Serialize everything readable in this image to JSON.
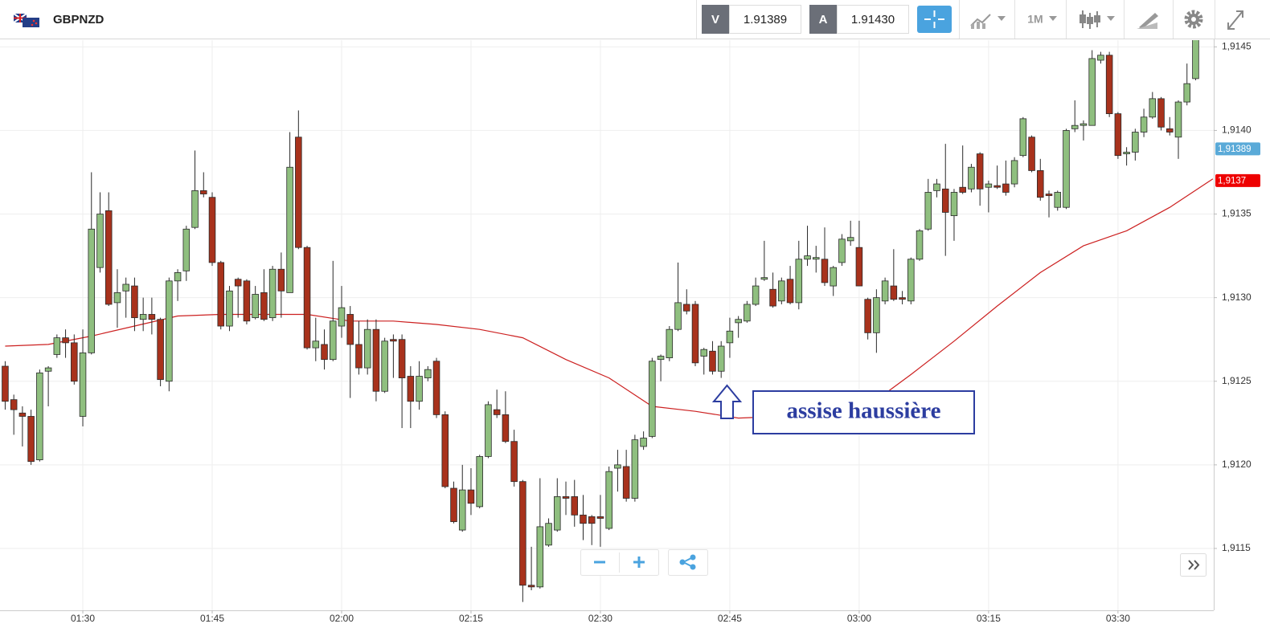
{
  "toolbar": {
    "symbol": "GBPNZD",
    "bid_label": "V",
    "bid": "1.91389",
    "ask_label": "A",
    "ask": "1.91430",
    "timeframe": "1M"
  },
  "chart_data": {
    "type": "candlestick",
    "x": [
      81,
      82,
      83,
      84,
      85,
      86,
      87,
      88,
      89,
      90,
      91,
      92,
      93,
      94,
      95,
      96,
      97,
      98,
      99,
      100,
      101,
      102,
      103,
      104,
      105,
      106,
      107,
      108,
      109,
      110,
      111,
      112,
      113,
      114,
      115,
      116,
      117,
      118,
      119,
      120,
      121,
      122,
      123,
      124,
      125,
      126,
      127,
      128,
      129,
      130,
      131,
      132,
      133,
      134,
      135,
      136,
      137,
      138,
      139,
      140,
      141,
      142,
      143,
      144,
      145,
      146,
      147,
      148,
      149,
      150,
      151,
      152,
      153,
      154,
      155,
      156,
      157,
      158,
      159,
      160,
      161,
      162,
      163,
      164,
      165,
      166,
      167,
      168,
      169,
      170,
      171,
      172,
      173,
      174,
      175,
      176,
      177,
      178,
      179,
      180,
      181,
      182,
      183,
      184,
      185,
      186,
      187,
      188,
      189,
      190,
      191,
      192,
      193,
      194,
      195,
      196,
      197,
      198,
      199,
      200,
      201,
      202,
      203,
      204,
      205,
      206,
      207,
      208,
      209,
      210,
      211,
      212,
      213,
      214,
      215,
      216,
      217,
      218,
      219
    ],
    "open": [
      1.91259,
      1.91239,
      1.91231,
      1.91229,
      1.91203,
      1.91256,
      1.91266,
      1.91276,
      1.91273,
      1.91229,
      1.91267,
      1.91318,
      1.91352,
      1.91297,
      1.91304,
      1.91307,
      1.91287,
      1.9129,
      1.91287,
      1.9125,
      1.9131,
      1.91316,
      1.91342,
      1.91364,
      1.9136,
      1.91321,
      1.91283,
      1.91311,
      1.9131,
      1.91288,
      1.91303,
      1.91288,
      1.91317,
      1.91303,
      1.91396,
      1.9133,
      1.9127,
      1.91272,
      1.91263,
      1.91283,
      1.9129,
      1.91272,
      1.91258,
      1.91281,
      1.91244,
      1.91275,
      1.91275,
      1.91253,
      1.91238,
      1.91252,
      1.91262,
      1.9123,
      1.91186,
      1.91161,
      1.91185,
      1.91175,
      1.91205,
      1.91233,
      1.9123,
      1.91214,
      1.9119,
      1.91128,
      1.91127,
      1.91152,
      1.91161,
      1.91181,
      1.91181,
      1.9117,
      1.91169,
      1.91169,
      1.91162,
      1.91198,
      1.91199,
      1.9118,
      1.91211,
      1.91217,
      1.91263,
      1.91264,
      1.91281,
      1.91296,
      1.91296,
      1.91265,
      1.91268,
      1.91256,
      1.91273,
      1.91285,
      1.91286,
      1.91296,
      1.91311,
      1.91305,
      1.91298,
      1.91311,
      1.91297,
      1.91323,
      1.91323,
      1.91323,
      1.91307,
      1.91321,
      1.91334,
      1.9133,
      1.91299,
      1.91279,
      1.91298,
      1.91307,
      1.913,
      1.91298,
      1.91323,
      1.91341,
      1.91364,
      1.91365,
      1.91349,
      1.91366,
      1.91365,
      1.91386,
      1.91366,
      1.91367,
      1.91368,
      1.91368,
      1.91385,
      1.91396,
      1.91376,
      1.91362,
      1.91354,
      1.91354,
      1.91401,
      1.91403,
      1.91403,
      1.91442,
      1.91445,
      1.9141,
      1.91386,
      1.91387,
      1.91399,
      1.91408,
      1.91419,
      1.91401,
      1.91396,
      1.91417,
      1.91431
    ],
    "high": [
      1.91262,
      1.91242,
      1.91235,
      1.91233,
      1.91257,
      1.91259,
      1.91278,
      1.91281,
      1.91278,
      1.91281,
      1.91375,
      1.91363,
      1.91363,
      1.91317,
      1.91312,
      1.91312,
      1.913,
      1.913,
      1.91288,
      1.91312,
      1.91317,
      1.91343,
      1.91388,
      1.91375,
      1.91363,
      1.91322,
      1.91307,
      1.91312,
      1.91311,
      1.91307,
      1.91317,
      1.91319,
      1.91327,
      1.91399,
      1.91412,
      1.91331,
      1.91288,
      1.91281,
      1.91322,
      1.91307,
      1.91295,
      1.91286,
      1.91287,
      1.91287,
      1.91276,
      1.91278,
      1.91278,
      1.91259,
      1.91262,
      1.91259,
      1.91264,
      1.91232,
      1.9119,
      1.912,
      1.91198,
      1.91206,
      1.91238,
      1.91245,
      1.91244,
      1.91221,
      1.91191,
      1.91151,
      1.91192,
      1.91168,
      1.91192,
      1.9119,
      1.91191,
      1.91182,
      1.9117,
      1.91182,
      1.91199,
      1.91209,
      1.91209,
      1.91218,
      1.9122,
      1.91264,
      1.91266,
      1.91283,
      1.91321,
      1.91305,
      1.91298,
      1.9127,
      1.91274,
      1.91274,
      1.91288,
      1.91289,
      1.91298,
      1.91312,
      1.91334,
      1.91315,
      1.91312,
      1.91319,
      1.91334,
      1.91343,
      1.91331,
      1.91342,
      1.91319,
      1.91338,
      1.91346,
      1.91346,
      1.913,
      1.91305,
      1.91312,
      1.91329,
      1.91304,
      1.91324,
      1.91341,
      1.91371,
      1.91371,
      1.91392,
      1.91365,
      1.91391,
      1.9138,
      1.91387,
      1.9137,
      1.91379,
      1.91382,
      1.91384,
      1.91408,
      1.91397,
      1.91383,
      1.91364,
      1.91364,
      1.91401,
      1.91418,
      1.91406,
      1.91448,
      1.91447,
      1.91447,
      1.91411,
      1.9139,
      1.91401,
      1.91413,
      1.91423,
      1.9142,
      1.91408,
      1.91418,
      1.9144,
      1.91456
    ],
    "low": [
      1.91233,
      1.91218,
      1.91211,
      1.912,
      1.91202,
      1.91235,
      1.91264,
      1.91264,
      1.91248,
      1.91223,
      1.91266,
      1.91315,
      1.91295,
      1.91282,
      1.91288,
      1.9128,
      1.9128,
      1.91278,
      1.91247,
      1.91244,
      1.91298,
      1.9131,
      1.91341,
      1.9136,
      1.91319,
      1.91281,
      1.9128,
      1.91288,
      1.91284,
      1.91287,
      1.91286,
      1.91286,
      1.91288,
      1.91303,
      1.91329,
      1.91269,
      1.91262,
      1.91257,
      1.91262,
      1.91276,
      1.9124,
      1.91254,
      1.91254,
      1.91238,
      1.91243,
      1.91252,
      1.91222,
      1.91222,
      1.91233,
      1.9125,
      1.91228,
      1.91186,
      1.91165,
      1.9116,
      1.9117,
      1.91174,
      1.91204,
      1.91228,
      1.91213,
      1.91187,
      1.91118,
      1.91125,
      1.91126,
      1.91151,
      1.9116,
      1.9117,
      1.91163,
      1.91155,
      1.91152,
      1.91151,
      1.91161,
      1.91184,
      1.91178,
      1.91178,
      1.91209,
      1.91216,
      1.9125,
      1.91262,
      1.9128,
      1.9129,
      1.91259,
      1.91254,
      1.91254,
      1.91252,
      1.91264,
      1.91276,
      1.91285,
      1.91295,
      1.9131,
      1.91294,
      1.91296,
      1.91296,
      1.91293,
      1.91319,
      1.91315,
      1.91307,
      1.91301,
      1.91319,
      1.91331,
      1.91307,
      1.91275,
      1.91267,
      1.91296,
      1.91298,
      1.91296,
      1.91296,
      1.91322,
      1.9134,
      1.9136,
      1.91325,
      1.91334,
      1.91362,
      1.91363,
      1.91355,
      1.91351,
      1.91365,
      1.91361,
      1.91366,
      1.91384,
      1.91375,
      1.91358,
      1.91348,
      1.91352,
      1.91353,
      1.91399,
      1.91394,
      1.91403,
      1.9144,
      1.91408,
      1.91383,
      1.91379,
      1.91382,
      1.91396,
      1.91407,
      1.914,
      1.91397,
      1.91383,
      1.91415,
      1.9143
    ],
    "close": [
      1.91238,
      1.91233,
      1.91229,
      1.91202,
      1.91255,
      1.91258,
      1.91276,
      1.91273,
      1.9125,
      1.91267,
      1.91341,
      1.9135,
      1.91296,
      1.91303,
      1.91308,
      1.91288,
      1.9129,
      1.91287,
      1.91251,
      1.9131,
      1.91315,
      1.91341,
      1.91364,
      1.91362,
      1.91321,
      1.91283,
      1.91304,
      1.91307,
      1.91286,
      1.91302,
      1.91287,
      1.91317,
      1.91304,
      1.91378,
      1.9133,
      1.9127,
      1.91274,
      1.91263,
      1.91286,
      1.91294,
      1.91272,
      1.91258,
      1.91281,
      1.91244,
      1.91274,
      1.91274,
      1.91252,
      1.91238,
      1.91253,
      1.91257,
      1.9123,
      1.91187,
      1.91166,
      1.91185,
      1.91177,
      1.91205,
      1.91236,
      1.9123,
      1.91214,
      1.9119,
      1.91128,
      1.91127,
      1.91163,
      1.91165,
      1.91181,
      1.9118,
      1.9117,
      1.91165,
      1.91165,
      1.91168,
      1.91196,
      1.912,
      1.9118,
      1.91215,
      1.91216,
      1.91262,
      1.91265,
      1.91281,
      1.91297,
      1.91292,
      1.91261,
      1.91269,
      1.91256,
      1.91271,
      1.9128,
      1.91287,
      1.91296,
      1.91307,
      1.91312,
      1.91295,
      1.9131,
      1.91297,
      1.91323,
      1.91325,
      1.91324,
      1.91309,
      1.91318,
      1.91335,
      1.91336,
      1.91307,
      1.91279,
      1.913,
      1.9131,
      1.91299,
      1.91299,
      1.91323,
      1.9134,
      1.91363,
      1.91368,
      1.91351,
      1.91363,
      1.91363,
      1.91378,
      1.91365,
      1.91368,
      1.91366,
      1.91363,
      1.91382,
      1.91407,
      1.91376,
      1.9136,
      1.91361,
      1.91363,
      1.914,
      1.91403,
      1.91404,
      1.91443,
      1.91445,
      1.9141,
      1.91385,
      1.91387,
      1.91399,
      1.91408,
      1.91419,
      1.91402,
      1.91399,
      1.91417,
      1.91428,
      1.91455
    ],
    "up_color": "#8fbf7f",
    "down_color": "#a8321c",
    "edge_color": "#2a2a2a",
    "ma": {
      "x": [
        81,
        86,
        91,
        96,
        101,
        106,
        111,
        116,
        121,
        126,
        131,
        136,
        141,
        146,
        151,
        156,
        161,
        166,
        171,
        176,
        181,
        186,
        191,
        196,
        201,
        206,
        211,
        216,
        221
      ],
      "values": [
        1.91271,
        1.91272,
        1.91277,
        1.91283,
        1.91289,
        1.9129,
        1.9129,
        1.9129,
        1.91286,
        1.91286,
        1.91284,
        1.91281,
        1.91276,
        1.91263,
        1.91252,
        1.91235,
        1.91232,
        1.91228,
        1.91229,
        1.91232,
        1.91235,
        1.91254,
        1.91274,
        1.91295,
        1.91315,
        1.91331,
        1.9134,
        1.91354,
        1.91371
      ],
      "color": "#cc2020"
    },
    "last_price": {
      "value": 1.91389,
      "label": "1,91389",
      "color": "#5aaad8"
    },
    "ma_last": {
      "value": 1.9137,
      "label": "1,9137",
      "color": "#ee0000"
    },
    "xlim": [
      80.4,
      221.1
    ],
    "xticks": [
      {
        "value": 90,
        "label": "01:30"
      },
      {
        "value": 105,
        "label": "01:45"
      },
      {
        "value": 120,
        "label": "02:00"
      },
      {
        "value": 135,
        "label": "02:15"
      },
      {
        "value": 150,
        "label": "02:30"
      },
      {
        "value": 165,
        "label": "02:45"
      },
      {
        "value": 180,
        "label": "03:00"
      },
      {
        "value": 195,
        "label": "03:15"
      },
      {
        "value": 210,
        "label": "03:30"
      }
    ],
    "ylim": [
      1.91113,
      1.91454
    ],
    "yticks": [
      {
        "value": 1.9115,
        "label": "1,9115"
      },
      {
        "value": 1.912,
        "label": "1,9120"
      },
      {
        "value": 1.9125,
        "label": "1,9125"
      },
      {
        "value": 1.913,
        "label": "1,9130"
      },
      {
        "value": 1.9135,
        "label": "1,9135"
      },
      {
        "value": 1.914,
        "label": "1,9140"
      },
      {
        "value": 1.9145,
        "label": "1,9145"
      }
    ],
    "grid": true,
    "annotation": "assise haussière"
  }
}
